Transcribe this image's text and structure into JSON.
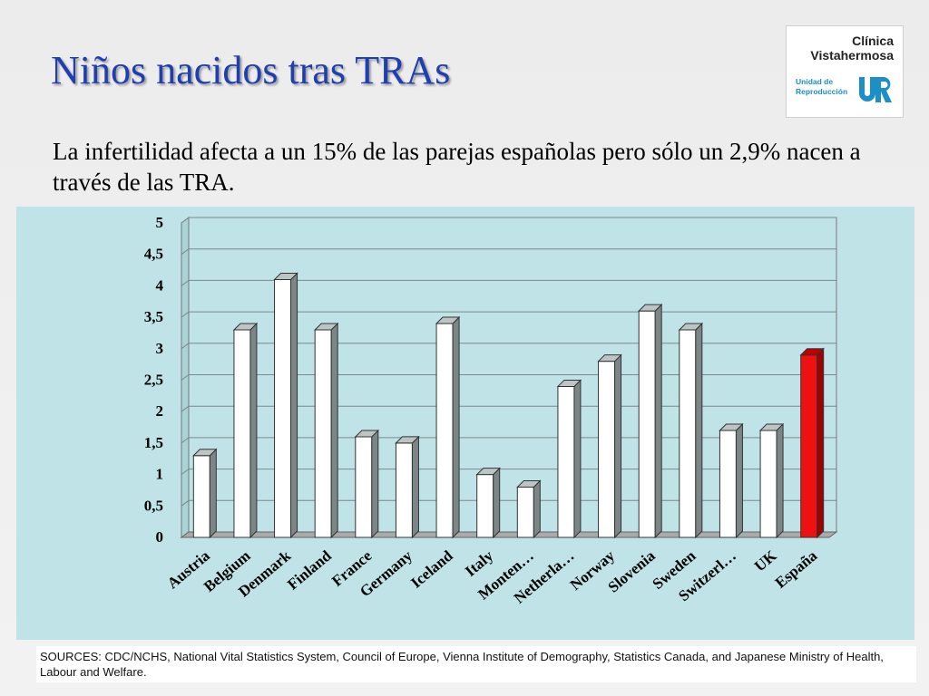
{
  "slide": {
    "title": "Niños nacidos tras TRAs",
    "subtitle": "La infertilidad afecta a un 15% de las parejas españolas pero sólo un 2,9% nacen a través de las TRA.",
    "sources": "SOURCES: CDC/NCHS, National Vital Statistics System, Council of Europe, Vienna Institute of Demography, Statistics Canada, and Japanese Ministry of Health, Labour and Welfare."
  },
  "logo": {
    "line1": "Clínica",
    "line2": "Vistahermosa",
    "line3a": "Unidad de",
    "line3b": "Reproducción",
    "mark": "UR"
  },
  "chart_data": {
    "type": "bar",
    "categories": [
      "Austria",
      "Belgium",
      "Denmark",
      "Finland",
      "France",
      "Germany",
      "Iceland",
      "Italy",
      "Monten…",
      "Netherla…",
      "Norway",
      "Slovenia",
      "Sweden",
      "Switzerl…",
      "UK",
      "España"
    ],
    "values": [
      1.3,
      3.3,
      4.1,
      3.3,
      1.6,
      1.5,
      3.4,
      1.0,
      0.8,
      2.4,
      2.8,
      3.6,
      3.3,
      1.7,
      1.7,
      2.9
    ],
    "ylim": [
      0,
      5
    ],
    "yticks": [
      "0",
      "0,5",
      "1",
      "1,5",
      "2",
      "2,5",
      "3",
      "3,5",
      "4",
      "4,5",
      "5"
    ],
    "grid": true,
    "colors": {
      "bar": "#ffffff",
      "highlight": "#ee1111",
      "panel": "#bfe3e6"
    },
    "highlight_category": "España"
  }
}
